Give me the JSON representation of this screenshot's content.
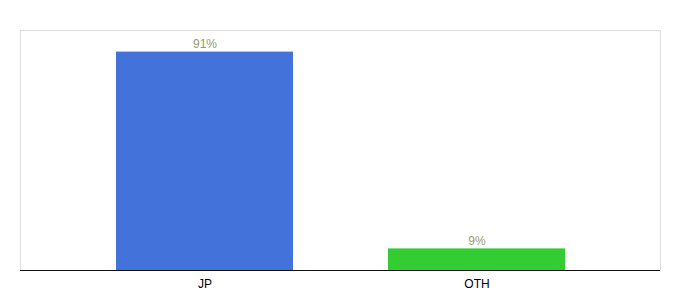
{
  "chart_data": {
    "type": "bar",
    "categories": [
      "JP",
      "OTH"
    ],
    "values": [
      91,
      9
    ],
    "value_labels": [
      "91%",
      "9%"
    ],
    "colors": [
      "#4472db",
      "#33cc33"
    ],
    "ylim": [
      0,
      100
    ],
    "data_labels": true,
    "tick_labels": "x"
  }
}
